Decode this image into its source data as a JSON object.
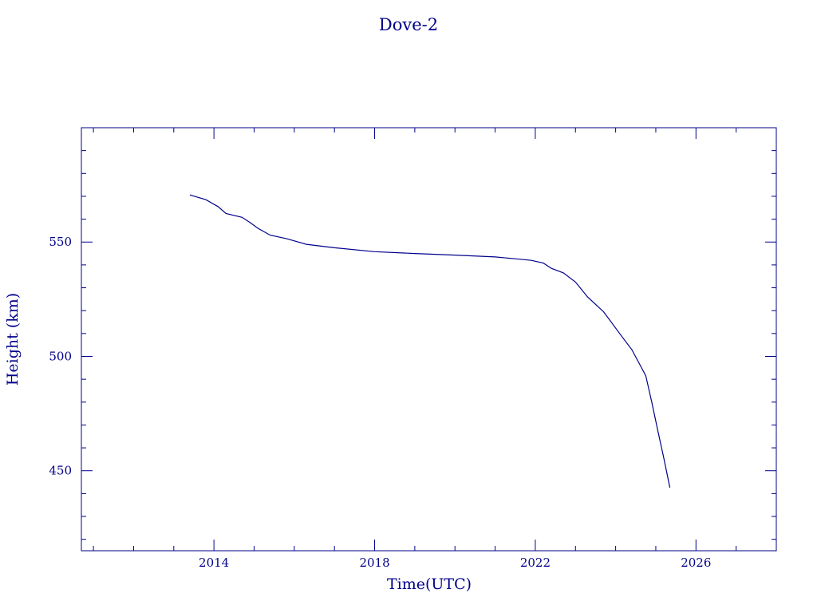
{
  "chart_data": {
    "type": "line",
    "title": "Dove-2",
    "xlabel": "Time(UTC)",
    "ylabel": "Height (km)",
    "xlim": [
      2010.7,
      2028.0
    ],
    "ylim": [
      415,
      600
    ],
    "x_ticks": [
      2014,
      2018,
      2022,
      2026
    ],
    "y_ticks": [
      450,
      500,
      550
    ],
    "grid": false,
    "colors": {
      "line": "#00008b",
      "axes": "#00008b",
      "text": "#00008b"
    },
    "series": [
      {
        "x": [
          2013.4,
          2013.8,
          2014.1,
          2014.3,
          2014.7,
          2014.9,
          2015.1,
          2015.4,
          2015.8,
          2016.3,
          2017.0,
          2018.0,
          2019.0,
          2020.0,
          2021.0,
          2021.5,
          2021.9,
          2022.2,
          2022.4,
          2022.7,
          2023.0,
          2023.3,
          2023.7,
          2024.1,
          2024.4,
          2024.6,
          2024.75,
          2024.9,
          2025.05,
          2025.2,
          2025.35
        ],
        "y": [
          570.6,
          568.5,
          565.5,
          562.5,
          560.8,
          558.5,
          556.0,
          553.0,
          551.5,
          549.0,
          547.5,
          545.8,
          545.0,
          544.3,
          543.5,
          542.7,
          542.0,
          540.8,
          538.5,
          536.5,
          532.5,
          526.0,
          519.5,
          510.0,
          503.0,
          496.5,
          491.5,
          480.0,
          467.5,
          455.5,
          442.6
        ]
      }
    ]
  }
}
